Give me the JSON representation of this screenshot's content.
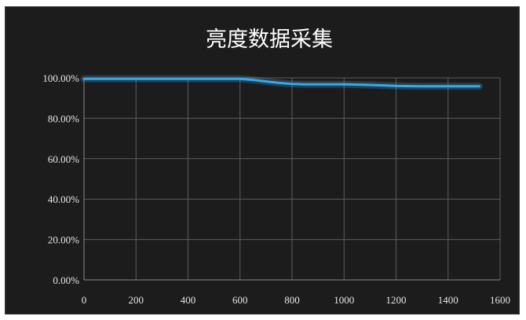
{
  "chart_data": {
    "type": "line",
    "title": "亮度数据采集",
    "xlabel": "",
    "ylabel": "",
    "xlim": [
      0,
      1600
    ],
    "ylim": [
      0,
      1
    ],
    "x_ticks": [
      0,
      200,
      400,
      600,
      800,
      1000,
      1200,
      1400,
      1600
    ],
    "x_tick_labels": [
      "0",
      "200",
      "400",
      "600",
      "800",
      "1000",
      "1200",
      "1400",
      "1600"
    ],
    "y_ticks": [
      0,
      0.2,
      0.4,
      0.6,
      0.8,
      1.0
    ],
    "y_tick_labels": [
      "0.00%",
      "20.00%",
      "40.00%",
      "60.00%",
      "80.00%",
      "100.00%"
    ],
    "grid": true,
    "legend": "none",
    "series": [
      {
        "color": "#3aa8e6",
        "x": [
          0,
          100,
          200,
          300,
          400,
          500,
          600,
          650,
          700,
          750,
          800,
          850,
          900,
          1000,
          1100,
          1200,
          1300,
          1400,
          1500,
          1520
        ],
        "y": [
          0.995,
          0.995,
          0.995,
          0.995,
          0.995,
          0.995,
          0.995,
          0.99,
          0.982,
          0.975,
          0.97,
          0.968,
          0.968,
          0.968,
          0.965,
          0.96,
          0.958,
          0.958,
          0.958,
          0.958
        ]
      }
    ]
  }
}
